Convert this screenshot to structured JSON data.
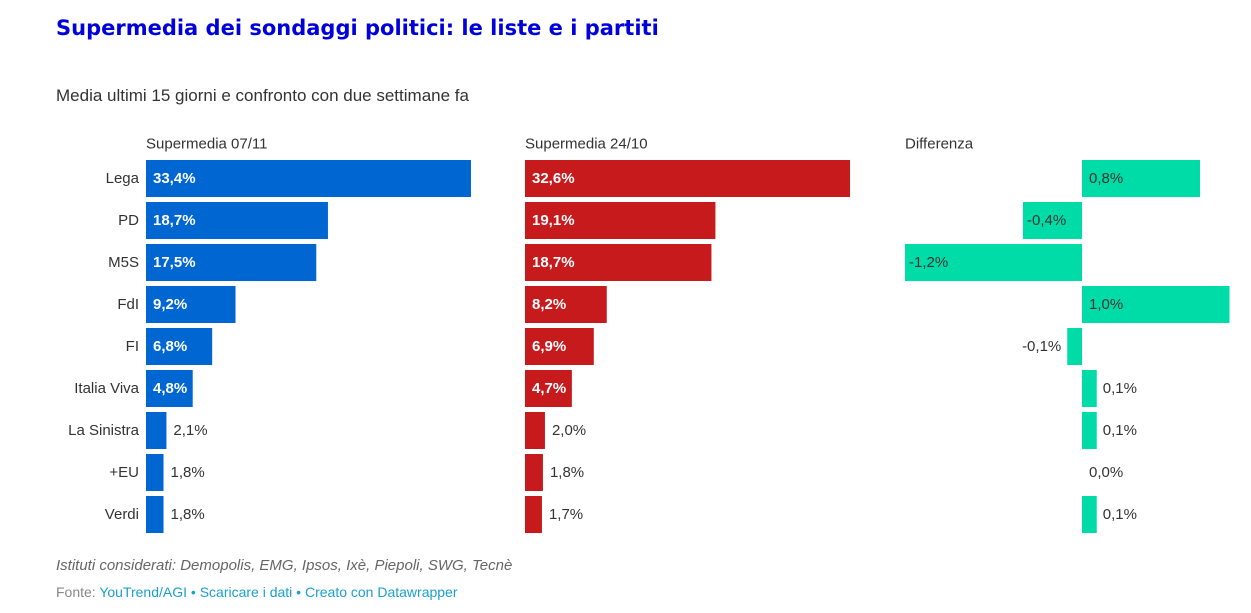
{
  "header": {
    "title": "Supermedia dei sondaggi politici: le liste e i partiti",
    "subtitle": "Media ultimi 15 giorni e confronto con due settimane fa"
  },
  "colors": {
    "title": "#0000dc",
    "current": "#0066d1",
    "previous": "#c71a1d",
    "difference": "#00dca8"
  },
  "chart_data": {
    "type": "bar",
    "orientation": "horizontal",
    "categories": [
      "Lega",
      "PD",
      "M5S",
      "FdI",
      "FI",
      "Italia Viva",
      "La Sinistra",
      "+EU",
      "Verdi"
    ],
    "series": [
      {
        "name": "Supermedia 07/11",
        "values": [
          33.4,
          18.7,
          17.5,
          9.2,
          6.8,
          4.8,
          2.1,
          1.8,
          1.8
        ],
        "labels": [
          "33,4%",
          "18,7%",
          "17,5%",
          "9,2%",
          "6,8%",
          "4,8%",
          "2,1%",
          "1,8%",
          "1,8%"
        ]
      },
      {
        "name": "Supermedia 24/10",
        "values": [
          32.6,
          19.1,
          18.7,
          8.2,
          6.9,
          4.7,
          2.0,
          1.8,
          1.7
        ],
        "labels": [
          "32,6%",
          "19,1%",
          "18,7%",
          "8,2%",
          "6,9%",
          "4,7%",
          "2,0%",
          "1,8%",
          "1,7%"
        ]
      },
      {
        "name": "Differenza",
        "values": [
          0.8,
          -0.4,
          -1.2,
          1.0,
          -0.1,
          0.1,
          0.1,
          0.0,
          0.1
        ],
        "labels": [
          "0,8%",
          "-0,4%",
          "-1,2%",
          "1,0%",
          "-0,1%",
          "0,1%",
          "0,1%",
          "0,0%",
          "0,1%"
        ]
      }
    ]
  },
  "notes": "Istituti considerati: Demopolis, EMG, Ipsos, Ixè, Piepoli, SWG, Tecnè",
  "footer": {
    "prefix": "Fonte: ",
    "source": "YouTrend/AGI",
    "separator": " • ",
    "download": "Scaricare i dati",
    "created": "Creato con Datawrapper"
  }
}
